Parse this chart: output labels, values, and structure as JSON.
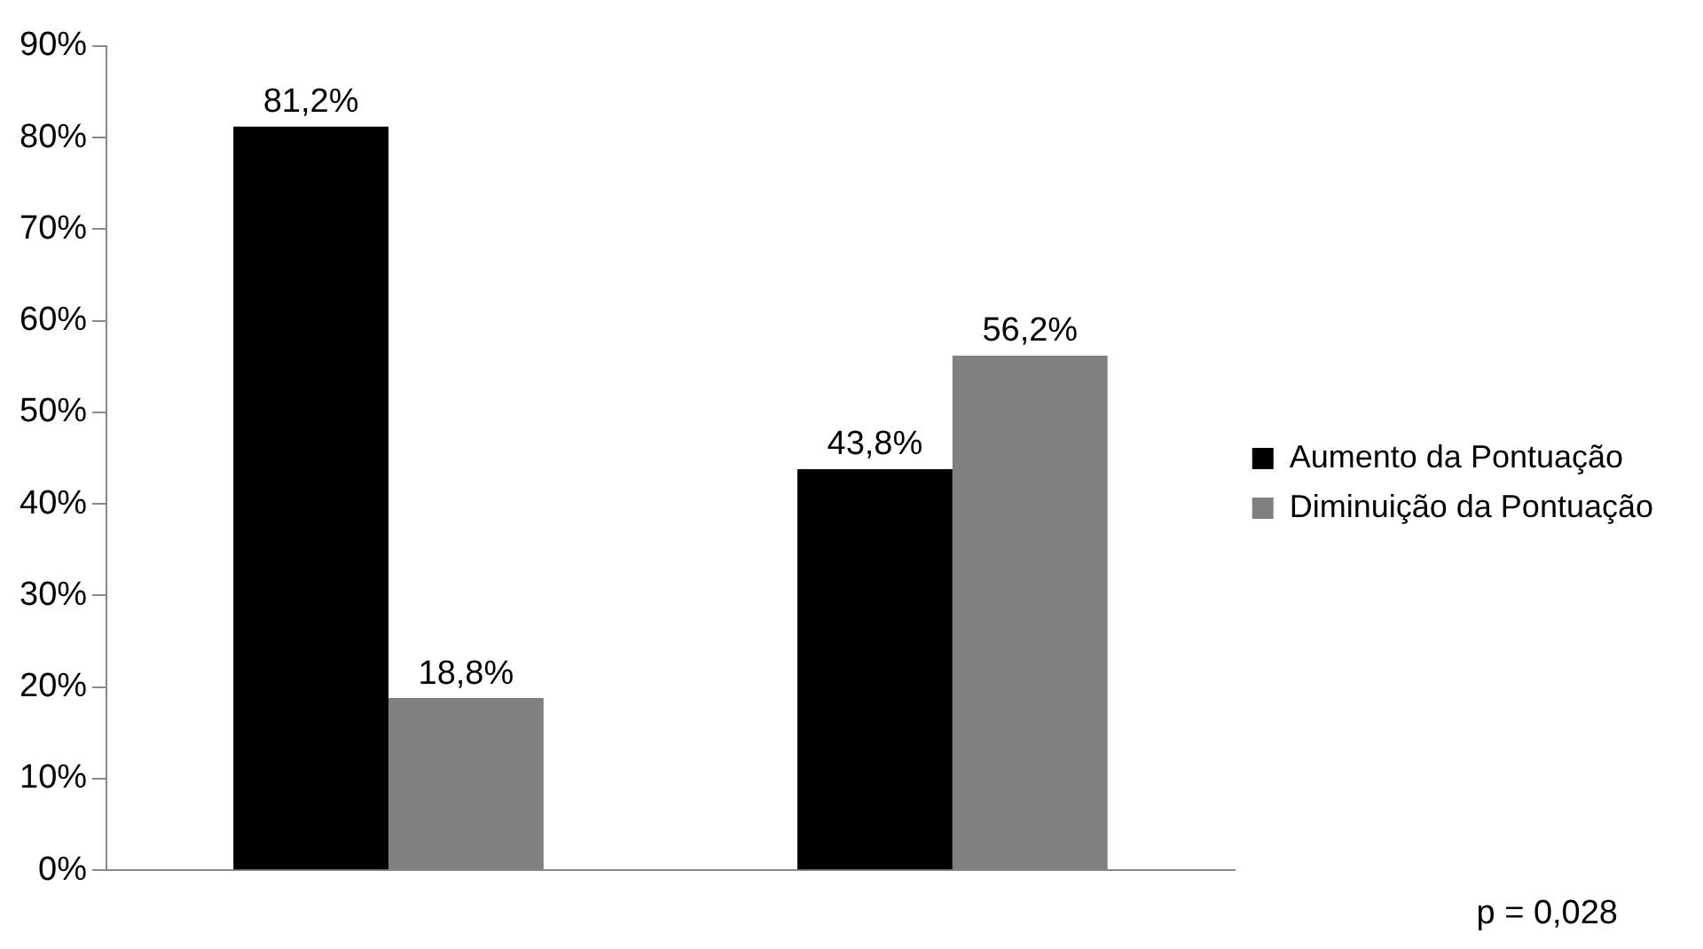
{
  "chart_data": {
    "type": "bar",
    "categories": [
      null,
      null
    ],
    "series": [
      {
        "name": "Aumento da Pontuação",
        "color": "#000000",
        "values": [
          81.2,
          43.8
        ],
        "value_labels": [
          "81,2%",
          "43,8%"
        ]
      },
      {
        "name": "Diminuição da Pontuação",
        "color": "#808080",
        "values": [
          18.8,
          56.2
        ],
        "value_labels": [
          "18,8%",
          "56,2%"
        ]
      }
    ],
    "ylim": [
      0,
      90
    ],
    "yticks": [
      {
        "value": 0,
        "label": "0%"
      },
      {
        "value": 10,
        "label": "10%"
      },
      {
        "value": 20,
        "label": "20%"
      },
      {
        "value": 30,
        "label": "30%"
      },
      {
        "value": 40,
        "label": "40%"
      },
      {
        "value": 50,
        "label": "50%"
      },
      {
        "value": 60,
        "label": "60%"
      },
      {
        "value": 70,
        "label": "70%"
      },
      {
        "value": 80,
        "label": "80%"
      },
      {
        "value": 90,
        "label": "90%"
      }
    ],
    "grid": false,
    "legend": "right",
    "annotations": [
      "p = 0,028"
    ]
  }
}
